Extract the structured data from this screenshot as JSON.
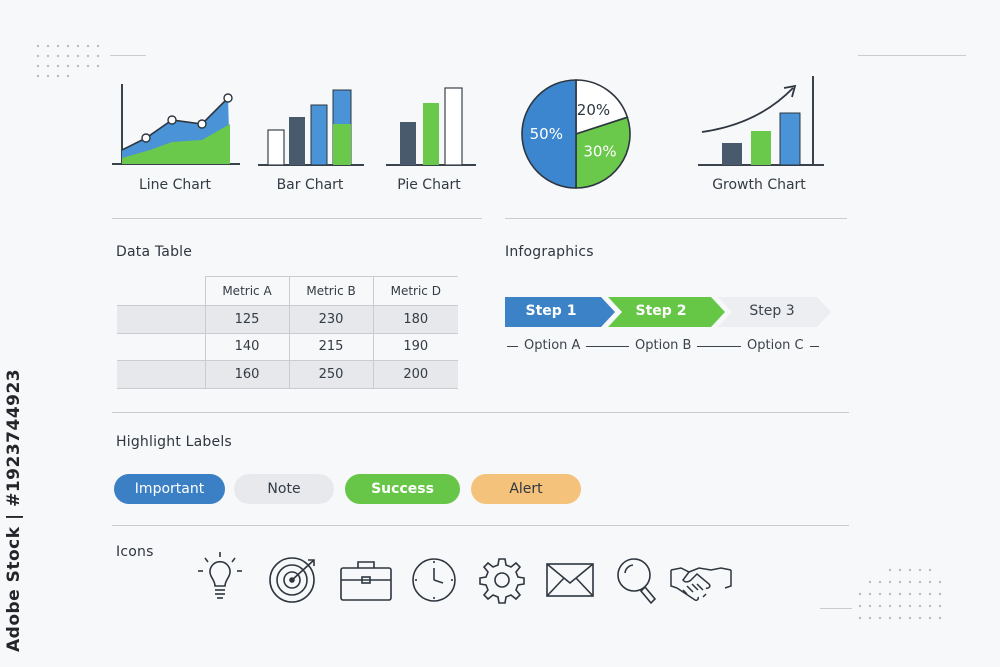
{
  "charts": {
    "line": {
      "caption": "Line Chart"
    },
    "bar": {
      "caption": "Bar Chart"
    },
    "pie": {
      "caption": "Pie Chart"
    },
    "donut": {
      "slices": [
        {
          "label": "50%",
          "value": 50,
          "color": "#3c86d0"
        },
        {
          "label": "20%",
          "value": 20,
          "color": "#ffffff"
        },
        {
          "label": "30%",
          "value": 30,
          "color": "#6ac94a"
        }
      ]
    },
    "growth": {
      "caption": "Growth Chart"
    }
  },
  "data_table": {
    "title": "Data Table",
    "headers": [
      "",
      "Metric A",
      "Metric B",
      "Metric D"
    ],
    "rows": [
      [
        "",
        "125",
        "230",
        "180"
      ],
      [
        "",
        "140",
        "215",
        "190"
      ],
      [
        "",
        "160",
        "250",
        "200"
      ]
    ]
  },
  "infographics": {
    "title": "Infographics",
    "steps": [
      {
        "label": "Step 1",
        "color": "#3b82c6"
      },
      {
        "label": "Step 2",
        "color": "#66c646"
      },
      {
        "label": "Step 3",
        "color": "#eceef1"
      }
    ],
    "options": [
      "Option A",
      "Option B",
      "Option C"
    ]
  },
  "highlight_labels": {
    "title": "Highlight Labels",
    "pills": [
      {
        "label": "Important",
        "color": "#3b7fc4"
      },
      {
        "label": "Note",
        "color": "#e7e9ec"
      },
      {
        "label": "Success",
        "color": "#67c547"
      },
      {
        "label": "Alert",
        "color": "#f5c27c"
      }
    ]
  },
  "icons": {
    "title": "Icons",
    "items": [
      "lightbulb-icon",
      "target-icon",
      "briefcase-icon",
      "clock-icon",
      "gear-icon",
      "envelope-icon",
      "magnifier-icon",
      "handshake-icon"
    ]
  },
  "watermark": {
    "side_text": "Adobe Stock | #1923744923",
    "tile_text": "Adobe Stock"
  }
}
